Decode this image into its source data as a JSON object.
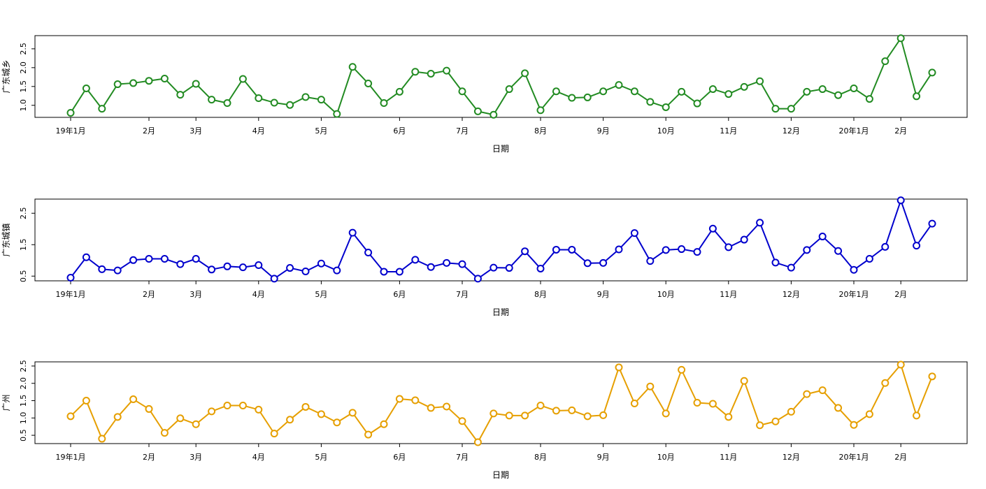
{
  "chart_data": [
    {
      "type": "line",
      "title": "",
      "xlabel": "日期",
      "ylabel": "广东城乡",
      "ylim": [
        0.68,
        2.85
      ],
      "yticks": [
        1.0,
        1.5,
        2.0,
        2.5
      ],
      "ytick_labels": [
        "1.0",
        "1.5",
        "2.0",
        "2.5"
      ],
      "xticks": [
        {
          "label": "19年1月",
          "x": 0
        },
        {
          "label": "2月",
          "x": 5
        },
        {
          "label": "3月",
          "x": 8
        },
        {
          "label": "4月",
          "x": 12
        },
        {
          "label": "5月",
          "x": 16
        },
        {
          "label": "6月",
          "x": 21
        },
        {
          "label": "7月",
          "x": 25
        },
        {
          "label": "8月",
          "x": 30
        },
        {
          "label": "9月",
          "x": 34
        },
        {
          "label": "10月",
          "x": 38
        },
        {
          "label": "11月",
          "x": 42
        },
        {
          "label": "12月",
          "x": 46
        },
        {
          "label": "20年1月",
          "x": 50
        },
        {
          "label": "2月",
          "x": 53
        }
      ],
      "x": [
        0,
        1,
        2,
        3,
        4,
        5,
        6,
        7,
        8,
        9,
        10,
        11,
        12,
        13,
        14,
        15,
        16,
        17,
        18,
        19,
        20,
        21,
        22,
        23,
        24,
        25,
        26,
        27,
        28,
        29,
        30,
        31,
        32,
        33,
        34,
        35,
        36,
        37,
        38,
        39,
        40,
        41,
        42,
        43,
        44,
        45,
        46,
        47,
        48,
        49,
        50,
        51,
        52,
        53,
        54,
        55
      ],
      "series": [
        {
          "name": "",
          "color": "#228B22",
          "values": [
            0.8,
            1.45,
            0.91,
            1.56,
            1.59,
            1.65,
            1.71,
            1.28,
            1.57,
            1.15,
            1.06,
            1.7,
            1.19,
            1.07,
            1.01,
            1.22,
            1.15,
            0.77,
            2.02,
            1.58,
            1.06,
            1.36,
            1.89,
            1.84,
            1.92,
            1.37,
            0.84,
            0.75,
            1.43,
            1.85,
            0.87,
            1.37,
            1.2,
            1.21,
            1.37,
            1.54,
            1.37,
            1.09,
            0.95,
            1.36,
            1.05,
            1.43,
            1.3,
            1.49,
            1.64,
            0.91,
            0.91,
            1.36,
            1.43,
            1.27,
            1.45,
            1.17,
            2.17,
            2.78,
            1.24,
            1.87
          ]
        }
      ]
    },
    {
      "type": "line",
      "title": "",
      "xlabel": "日期",
      "ylabel": "广东城镇",
      "ylim": [
        0.35,
        2.95
      ],
      "yticks": [
        0.5,
        1.5,
        2.5
      ],
      "ytick_labels": [
        "0.5",
        "1.5",
        "2.5"
      ],
      "xticks": [
        {
          "label": "19年1月",
          "x": 0
        },
        {
          "label": "2月",
          "x": 5
        },
        {
          "label": "3月",
          "x": 8
        },
        {
          "label": "4月",
          "x": 12
        },
        {
          "label": "5月",
          "x": 16
        },
        {
          "label": "6月",
          "x": 21
        },
        {
          "label": "7月",
          "x": 25
        },
        {
          "label": "8月",
          "x": 30
        },
        {
          "label": "9月",
          "x": 34
        },
        {
          "label": "10月",
          "x": 38
        },
        {
          "label": "11月",
          "x": 42
        },
        {
          "label": "12月",
          "x": 46
        },
        {
          "label": "20年1月",
          "x": 50
        },
        {
          "label": "2月",
          "x": 53
        }
      ],
      "x": [
        0,
        1,
        2,
        3,
        4,
        5,
        6,
        7,
        8,
        9,
        10,
        11,
        12,
        13,
        14,
        15,
        16,
        17,
        18,
        19,
        20,
        21,
        22,
        23,
        24,
        25,
        26,
        27,
        28,
        29,
        30,
        31,
        32,
        33,
        34,
        35,
        36,
        37,
        38,
        39,
        40,
        41,
        42,
        43,
        44,
        45,
        46,
        47,
        48,
        49,
        50,
        51,
        52,
        53,
        54,
        55
      ],
      "series": [
        {
          "name": "",
          "color": "#0000CD",
          "values": [
            0.45,
            1.1,
            0.72,
            0.68,
            1.01,
            1.05,
            1.05,
            0.88,
            1.05,
            0.71,
            0.81,
            0.78,
            0.85,
            0.42,
            0.76,
            0.65,
            0.9,
            0.68,
            1.88,
            1.25,
            0.64,
            0.64,
            1.02,
            0.79,
            0.92,
            0.88,
            0.42,
            0.77,
            0.76,
            1.29,
            0.74,
            1.34,
            1.34,
            0.91,
            0.92,
            1.35,
            1.87,
            0.98,
            1.33,
            1.36,
            1.27,
            2.01,
            1.42,
            1.66,
            2.2,
            0.93,
            0.77,
            1.33,
            1.76,
            1.3,
            0.7,
            1.05,
            1.43,
            2.91,
            1.47,
            2.17
          ]
        }
      ]
    },
    {
      "type": "line",
      "title": "",
      "xlabel": "日期",
      "ylabel": "广州",
      "ylim": [
        0.26,
        2.62
      ],
      "yticks": [
        0.5,
        1.0,
        1.5,
        2.0,
        2.5
      ],
      "ytick_labels": [
        "0.5",
        "1.0",
        "1.5",
        "2.0",
        "2.5"
      ],
      "xticks": [
        {
          "label": "19年1月",
          "x": 0
        },
        {
          "label": "2月",
          "x": 5
        },
        {
          "label": "3月",
          "x": 8
        },
        {
          "label": "4月",
          "x": 12
        },
        {
          "label": "5月",
          "x": 16
        },
        {
          "label": "6月",
          "x": 21
        },
        {
          "label": "7月",
          "x": 25
        },
        {
          "label": "8月",
          "x": 30
        },
        {
          "label": "9月",
          "x": 34
        },
        {
          "label": "10月",
          "x": 38
        },
        {
          "label": "11月",
          "x": 42
        },
        {
          "label": "12月",
          "x": 46
        },
        {
          "label": "20年1月",
          "x": 50
        },
        {
          "label": "2月",
          "x": 53
        }
      ],
      "x": [
        0,
        1,
        2,
        3,
        4,
        5,
        6,
        7,
        8,
        9,
        10,
        11,
        12,
        13,
        14,
        15,
        16,
        17,
        18,
        19,
        20,
        21,
        22,
        23,
        24,
        25,
        26,
        27,
        28,
        29,
        30,
        31,
        32,
        33,
        34,
        35,
        36,
        37,
        38,
        39,
        40,
        41,
        42,
        43,
        44,
        45,
        46,
        47,
        48,
        49,
        50,
        51,
        52,
        53,
        54,
        55
      ],
      "series": [
        {
          "name": "",
          "color": "#E69F00",
          "values": [
            1.05,
            1.5,
            0.4,
            1.03,
            1.54,
            1.26,
            0.57,
            0.99,
            0.82,
            1.19,
            1.36,
            1.36,
            1.24,
            0.55,
            0.95,
            1.32,
            1.11,
            0.87,
            1.15,
            0.52,
            0.82,
            1.55,
            1.51,
            1.29,
            1.33,
            0.91,
            0.3,
            1.13,
            1.07,
            1.07,
            1.36,
            1.21,
            1.22,
            1.05,
            1.08,
            2.46,
            1.42,
            1.91,
            1.13,
            2.39,
            1.44,
            1.41,
            1.03,
            2.07,
            0.79,
            0.9,
            1.18,
            1.69,
            1.8,
            1.29,
            0.8,
            1.11,
            2.01,
            2.54,
            1.07,
            2.2
          ]
        }
      ]
    }
  ]
}
